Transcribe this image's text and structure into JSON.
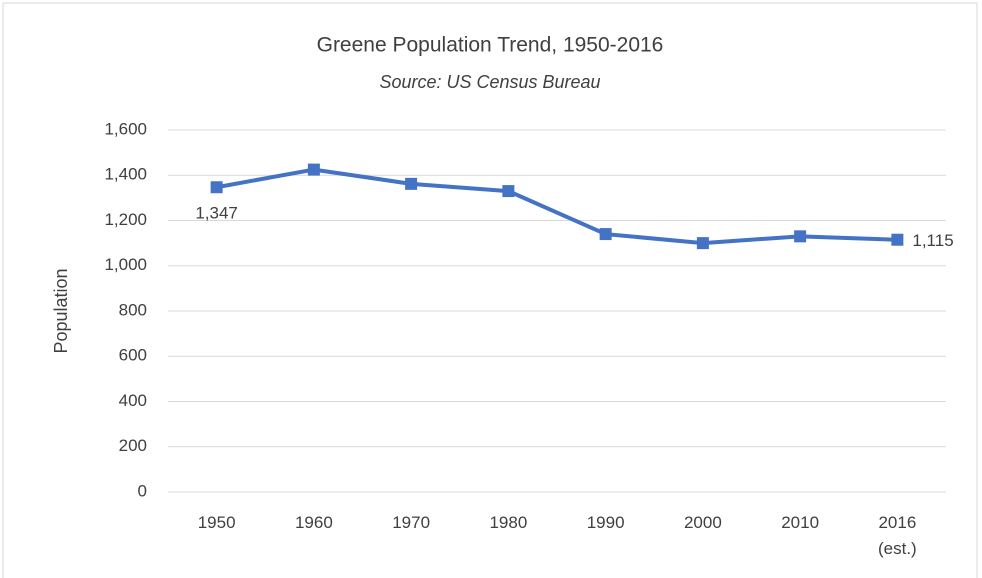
{
  "chart_data": {
    "type": "line",
    "title": "Greene Population Trend, 1950-2016",
    "subtitle": "Source: US Census Bureau",
    "y_label": "Population",
    "categories": [
      "1950",
      "1960",
      "1970",
      "1980",
      "1990",
      "2000",
      "2010",
      "2016 (est.)"
    ],
    "series": [
      {
        "name": "Population",
        "color": "#4472c4",
        "values": [
          1347,
          1425,
          1362,
          1330,
          1140,
          1100,
          1130,
          1115
        ],
        "value_labels": [
          "1,347",
          null,
          null,
          null,
          null,
          null,
          null,
          "1,115"
        ]
      }
    ],
    "ylim": [
      0,
      1600
    ],
    "yticks": [
      0,
      200,
      400,
      600,
      800,
      {
        "value": 1000,
        "label": "1,000"
      },
      {
        "value": 1200,
        "label": "1,200"
      },
      {
        "value": 1400,
        "label": "1,400"
      },
      {
        "value": 1600,
        "label": "1,600"
      }
    ],
    "grid": true
  }
}
